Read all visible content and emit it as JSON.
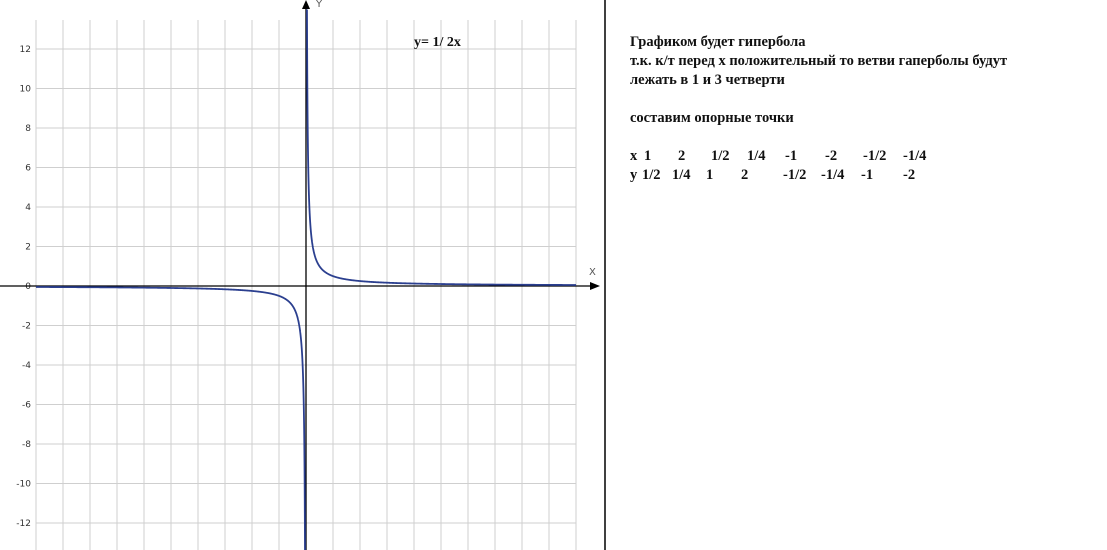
{
  "chart_data": {
    "type": "line",
    "function": "y = 1/(2x)",
    "annotation": "y= 1/ 2x",
    "xlabel": "X",
    "ylabel": "Y",
    "xlim": [
      -10,
      10
    ],
    "ylim": [
      -13,
      13
    ],
    "yticks": [
      12,
      10,
      8,
      6,
      4,
      2,
      0,
      -2,
      -4,
      -6,
      -8,
      -10,
      -12
    ],
    "ytick_labels": [
      "12",
      "10",
      "8",
      "6",
      "4",
      "2",
      "0",
      "-2",
      "-4",
      "-6",
      "-8",
      "-10",
      "-12"
    ],
    "grid": true,
    "line_color": "#2b3f8f"
  },
  "notes": {
    "lines": [
      "Графиком будет гипербола",
      "т.к. к/т перед х положительный то ветви гаперболы будут",
      "лежать в 1 и 3 четверти",
      "",
      "составим опорные точки",
      ""
    ],
    "table": {
      "x_label": "х",
      "x_values": [
        "1",
        "2",
        "1/2",
        "1/4",
        "-1",
        "-2",
        "-1/2",
        "-1/4"
      ],
      "y_label": "у",
      "y_values": [
        "1/2",
        "1/4",
        "1",
        "2",
        "-1/2",
        "-1/4",
        "-1",
        "-2"
      ]
    }
  }
}
